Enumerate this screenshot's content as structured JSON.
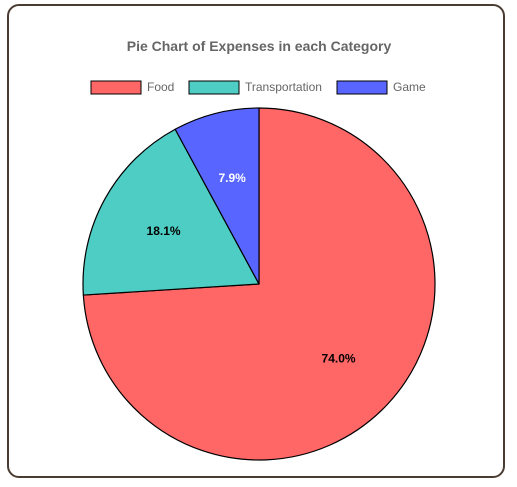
{
  "chart_data": {
    "type": "pie",
    "title": "Pie Chart of Expenses in each Category",
    "legend_position": "top",
    "categories": [
      "Food",
      "Transportation",
      "Game"
    ],
    "values": [
      74.0,
      18.1,
      7.9
    ],
    "labels": [
      "74.0%",
      "18.1%",
      "7.9%"
    ],
    "colors": [
      "#ff6666",
      "#4ecdc4",
      "#5865ff"
    ],
    "label_colors": [
      "#000000",
      "#000000",
      "#ffffff"
    ],
    "border_color": "#000000"
  }
}
